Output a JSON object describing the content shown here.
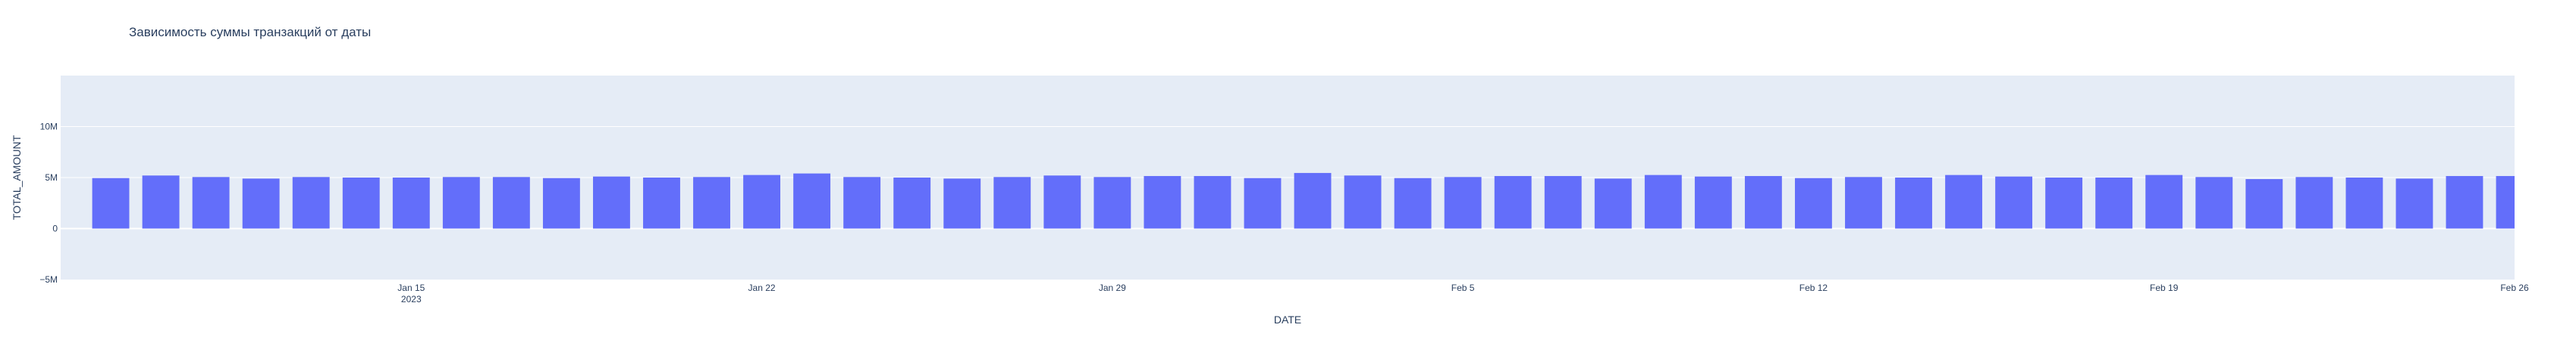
{
  "chart_data": {
    "type": "bar",
    "title": "Зависимость суммы транзакций от даты",
    "xlabel": "DATE",
    "ylabel": "TOTAL_AMOUNT",
    "ylim": [
      -5000000,
      15000000
    ],
    "x_range": [
      "2023-01-08",
      "2023-02-26"
    ],
    "y_ticks": [
      {
        "value": -5000000,
        "label": "−5M"
      },
      {
        "value": 0,
        "label": "0"
      },
      {
        "value": 5000000,
        "label": "5M"
      },
      {
        "value": 10000000,
        "label": "10M"
      }
    ],
    "x_ticks": [
      {
        "date": "2023-01-15",
        "label": "Jan 15",
        "sublabel": "2023"
      },
      {
        "date": "2023-01-22",
        "label": "Jan 22",
        "sublabel": ""
      },
      {
        "date": "2023-01-29",
        "label": "Jan 29",
        "sublabel": ""
      },
      {
        "date": "2023-02-05",
        "label": "Feb 5",
        "sublabel": ""
      },
      {
        "date": "2023-02-12",
        "label": "Feb 12",
        "sublabel": ""
      },
      {
        "date": "2023-02-19",
        "label": "Feb 19",
        "sublabel": ""
      },
      {
        "date": "2023-02-26",
        "label": "Feb 26",
        "sublabel": ""
      }
    ],
    "grid": true,
    "bar_color": "#636efa",
    "plot_bg": "#e5ecf6",
    "x": [
      "2023-01-09",
      "2023-01-10",
      "2023-01-11",
      "2023-01-12",
      "2023-01-13",
      "2023-01-14",
      "2023-01-15",
      "2023-01-16",
      "2023-01-17",
      "2023-01-18",
      "2023-01-19",
      "2023-01-20",
      "2023-01-21",
      "2023-01-22",
      "2023-01-23",
      "2023-01-24",
      "2023-01-25",
      "2023-01-26",
      "2023-01-27",
      "2023-01-28",
      "2023-01-29",
      "2023-01-30",
      "2023-01-31",
      "2023-02-01",
      "2023-02-02",
      "2023-02-03",
      "2023-02-04",
      "2023-02-05",
      "2023-02-06",
      "2023-02-07",
      "2023-02-08",
      "2023-02-09",
      "2023-02-10",
      "2023-02-11",
      "2023-02-12",
      "2023-02-13",
      "2023-02-14",
      "2023-02-15",
      "2023-02-16",
      "2023-02-17",
      "2023-02-18",
      "2023-02-19",
      "2023-02-20",
      "2023-02-21",
      "2023-02-22",
      "2023-02-23",
      "2023-02-24",
      "2023-02-25",
      "2023-02-26"
    ],
    "values": [
      4950000,
      5200000,
      5050000,
      4900000,
      5050000,
      5000000,
      5000000,
      5050000,
      5050000,
      4950000,
      5100000,
      5000000,
      5050000,
      5250000,
      5400000,
      5050000,
      5000000,
      4900000,
      5050000,
      5200000,
      5050000,
      5150000,
      5150000,
      4950000,
      5450000,
      5200000,
      4950000,
      5050000,
      5150000,
      5150000,
      4900000,
      5250000,
      5100000,
      5150000,
      4950000,
      5050000,
      5000000,
      5250000,
      5100000,
      5000000,
      5000000,
      5250000,
      5050000,
      4850000,
      5050000,
      5000000,
      4900000,
      5150000,
      5150000
    ]
  }
}
